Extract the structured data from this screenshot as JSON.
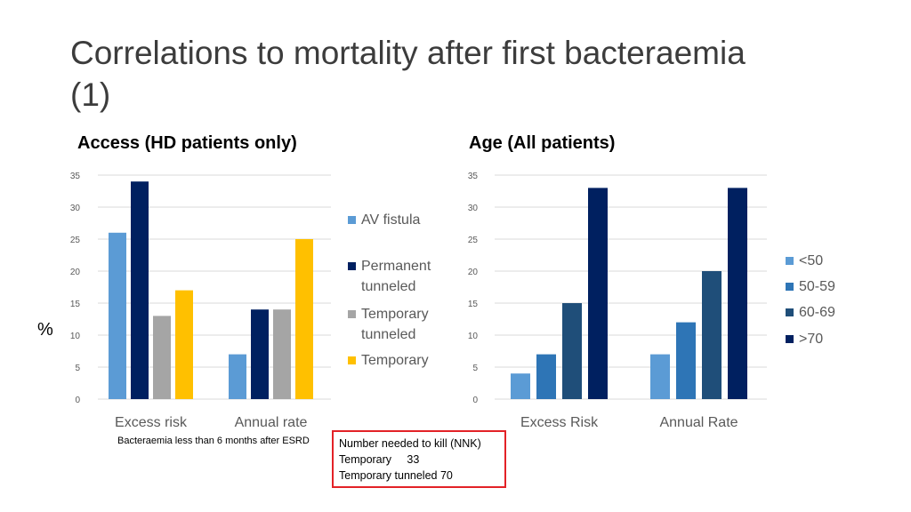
{
  "title": "Correlations to mortality after first bacteraemia (1)",
  "y_unit_label": "%",
  "footnote": "Bacteraemia less than 6 months after ESRD",
  "nnk": {
    "line1": "Number needed to kill (NNK)",
    "line2_label": "Temporary",
    "line2_value": "33",
    "line3": "Temporary tunneled 70"
  },
  "chart_data": [
    {
      "type": "bar",
      "title": "Access (HD patients only)",
      "categories": [
        "Excess risk",
        "Annual rate"
      ],
      "ylim": [
        0,
        35
      ],
      "yticks": [
        0,
        5,
        10,
        15,
        20,
        25,
        30,
        35
      ],
      "grid": true,
      "legend_position": "right",
      "series": [
        {
          "name": "AV fistula",
          "color": "#5b9bd5",
          "values": [
            26,
            7
          ]
        },
        {
          "name": "Permanent tunneled",
          "color": "#002060",
          "values": [
            34,
            14
          ]
        },
        {
          "name": "Temporary tunneled",
          "color": "#a5a5a5",
          "values": [
            13,
            14
          ]
        },
        {
          "name": "Temporary",
          "color": "#ffc000",
          "values": [
            17,
            25
          ]
        }
      ]
    },
    {
      "type": "bar",
      "title": "Age (All patients)",
      "categories": [
        "Excess Risk",
        "Annual Rate"
      ],
      "ylim": [
        0,
        35
      ],
      "yticks": [
        0,
        5,
        10,
        15,
        20,
        25,
        30,
        35
      ],
      "grid": true,
      "legend_position": "right",
      "series": [
        {
          "name": "<50",
          "color": "#5b9bd5",
          "values": [
            4,
            7
          ]
        },
        {
          "name": "50-59",
          "color": "#2e75b6",
          "values": [
            7,
            12
          ]
        },
        {
          "name": "60-69",
          "color": "#1f4e79",
          "values": [
            15,
            20
          ]
        },
        {
          "name": ">70",
          "color": "#002060",
          "values": [
            33,
            33
          ]
        }
      ]
    }
  ]
}
